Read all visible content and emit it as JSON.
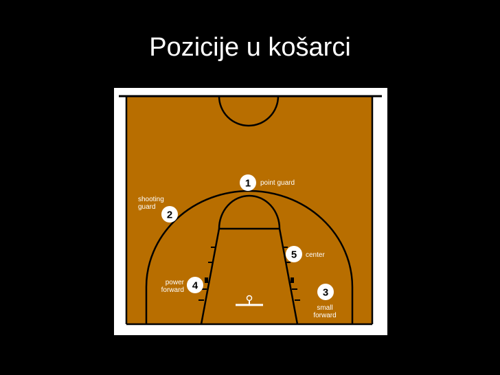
{
  "slide": {
    "title": "Pozicije u košarci"
  },
  "colors": {
    "background": "#000000",
    "court_fill": "#b86e00",
    "court_frame": "#ffffff",
    "lines": "#000000",
    "marker_fill": "#ffffff",
    "label_text": "#ffffff"
  },
  "positions": [
    {
      "number": "1",
      "label_lines": [
        "point guard"
      ]
    },
    {
      "number": "2",
      "label_lines": [
        "shooting",
        "guard"
      ]
    },
    {
      "number": "3",
      "label_lines": [
        "small",
        "forward"
      ]
    },
    {
      "number": "4",
      "label_lines": [
        "power",
        "forward"
      ]
    },
    {
      "number": "5",
      "label_lines": [
        "center"
      ]
    }
  ]
}
